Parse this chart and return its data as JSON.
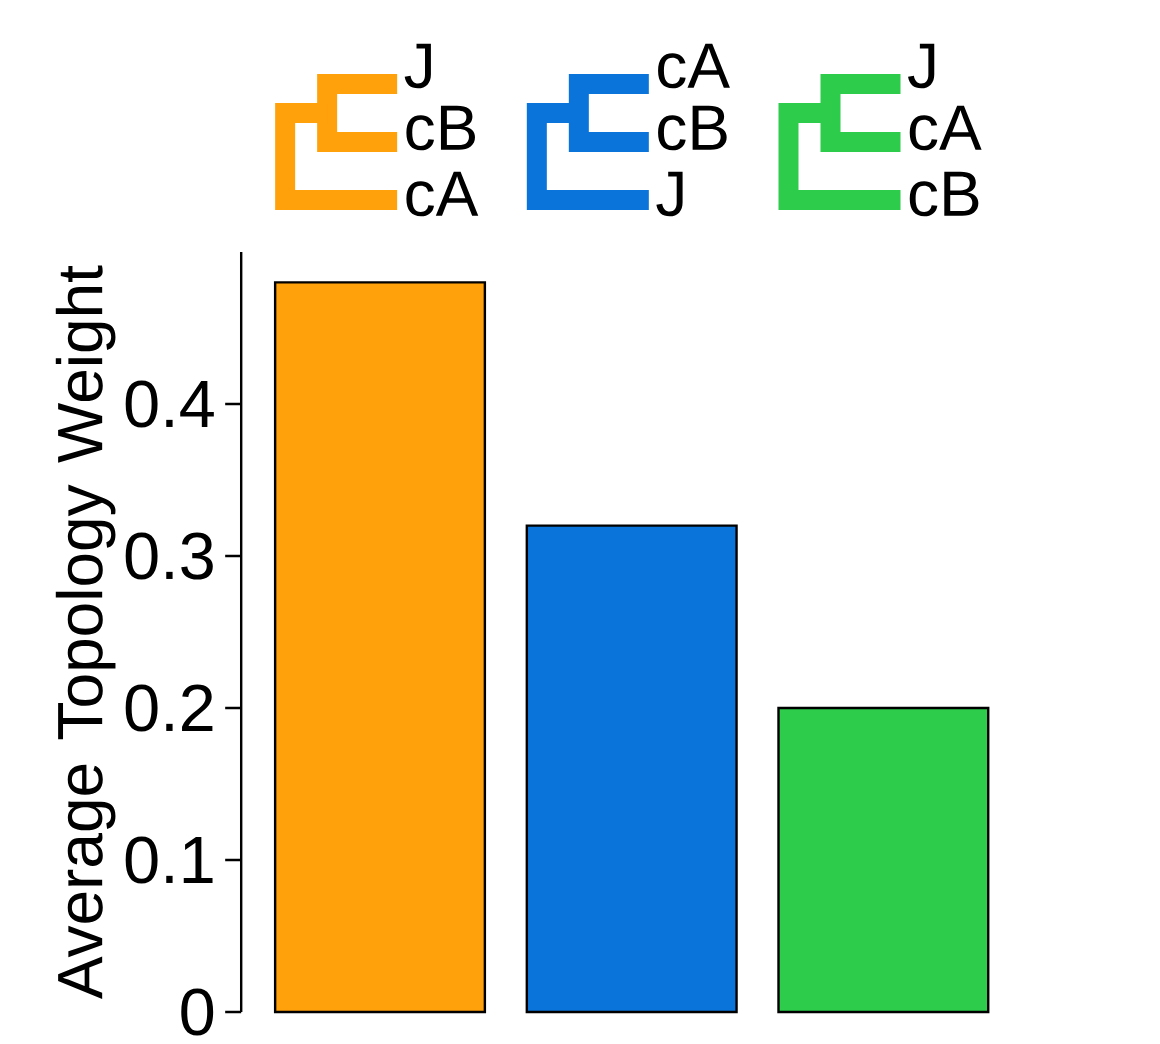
{
  "chart_data": {
    "type": "bar",
    "ylabel": "Average Topology Weight",
    "categories": [
      null,
      null,
      null
    ],
    "values": [
      0.48,
      0.32,
      0.2
    ],
    "colors": [
      "#ffa10a",
      "#0a74da",
      "#2ecc4b"
    ],
    "ylim": [
      0,
      0.5
    ],
    "yticks": [
      0,
      0.1,
      0.2,
      0.3,
      0.4
    ],
    "annotations": [
      "J",
      "cB",
      "cA",
      "cA",
      "cB",
      "J",
      "J",
      "cA",
      "cB"
    ]
  }
}
